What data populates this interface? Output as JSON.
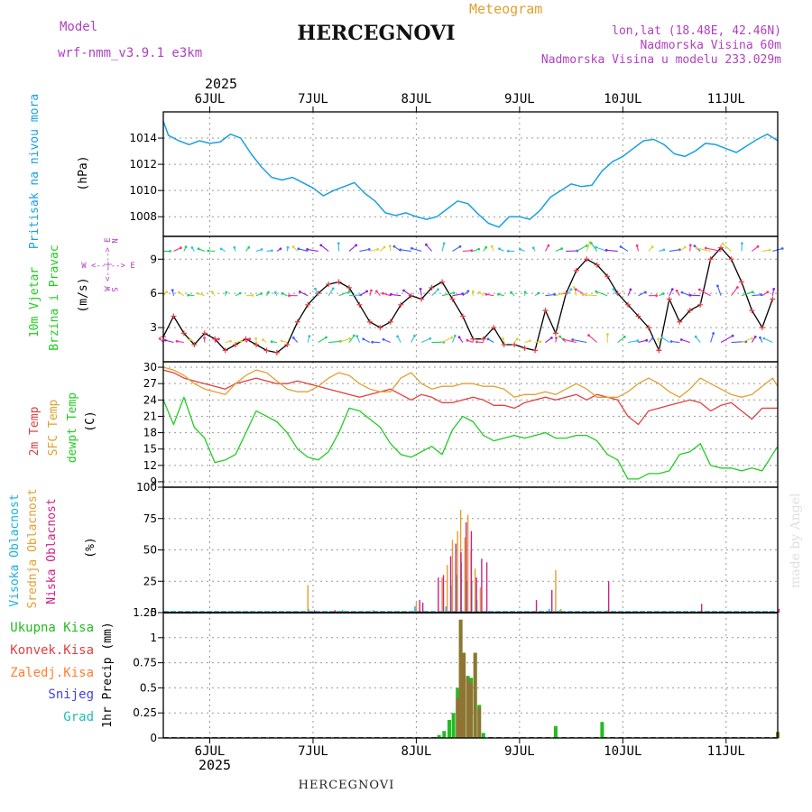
{
  "header": {
    "meteogram_label": "Meteogram",
    "model_label": "Model",
    "model_name": "wrf-nmm_v3.9.1  e3km",
    "station": "HERCEGNOVI",
    "lonlat": "lon,lat (18.48E, 42.46N)",
    "altitude": "Nadmorska Visina 60m",
    "model_altitude": "Nadmorska Visina u modelu 233.029m",
    "year": "2025",
    "footer_station": "HERCEGNOVI",
    "credit": "made by Angel"
  },
  "colors": {
    "pressure": "#1aa0e0",
    "wind_label": "#22cc22",
    "temp2m": "#e04040",
    "sfc": "#e0a030",
    "dewpt": "#22cc22",
    "cloud_high": "#1ab0e0",
    "cloud_mid": "#e0a030",
    "cloud_low": "#cc2288",
    "rain_total": "#22bb22",
    "rain_conv": "#e04040",
    "rain_frozen": "#ff8030",
    "snow": "#4040ee",
    "graupel": "#20c0b0",
    "purple": "#b040c0",
    "black": "#000000"
  },
  "chart_data": [
    {
      "type": "line",
      "panel": "pressure",
      "ylabel_1": "Pritisak na nivou mora",
      "ylabel_2": "(hPa)",
      "ylim": [
        1006.5,
        1016
      ],
      "yticks": [
        "1008",
        "1010",
        "1012",
        "1014"
      ],
      "x_start_day": 5.55,
      "x_end_day": 11.5,
      "day_labels": [
        "6JUL",
        "7JUL",
        "8JUL",
        "9JUL",
        "10JUL",
        "11JUL"
      ],
      "x": [
        5.55,
        5.6,
        5.7,
        5.8,
        5.9,
        6.0,
        6.1,
        6.2,
        6.3,
        6.4,
        6.5,
        6.6,
        6.7,
        6.8,
        6.9,
        7.0,
        7.1,
        7.2,
        7.3,
        7.4,
        7.5,
        7.6,
        7.7,
        7.8,
        7.9,
        8.0,
        8.1,
        8.2,
        8.3,
        8.4,
        8.5,
        8.6,
        8.7,
        8.8,
        8.9,
        9.0,
        9.1,
        9.2,
        9.3,
        9.4,
        9.5,
        9.6,
        9.7,
        9.8,
        9.9,
        10.0,
        10.1,
        10.2,
        10.3,
        10.4,
        10.5,
        10.6,
        10.7,
        10.8,
        10.9,
        11.0,
        11.1,
        11.2,
        11.3,
        11.4,
        11.5
      ],
      "values": [
        1015.3,
        1014.2,
        1013.8,
        1013.5,
        1013.8,
        1013.6,
        1013.7,
        1014.3,
        1014.0,
        1012.8,
        1011.8,
        1011.0,
        1010.8,
        1011.0,
        1010.6,
        1010.2,
        1009.6,
        1010.0,
        1010.3,
        1010.6,
        1009.8,
        1009.2,
        1008.3,
        1008.1,
        1008.3,
        1008.0,
        1007.8,
        1008.0,
        1008.6,
        1009.2,
        1009.0,
        1008.2,
        1007.5,
        1007.2,
        1008.0,
        1008.0,
        1007.8,
        1008.5,
        1009.5,
        1010.0,
        1010.5,
        1010.3,
        1010.4,
        1011.5,
        1012.2,
        1012.6,
        1013.2,
        1013.8,
        1013.9,
        1013.5,
        1012.8,
        1012.6,
        1013.0,
        1013.6,
        1013.5,
        1013.2,
        1012.9,
        1013.4,
        1013.9,
        1014.3,
        1013.8
      ]
    },
    {
      "type": "line",
      "panel": "wind",
      "ylabel_1": "10m Vjetar",
      "ylabel_2": "Brzina i Pravac",
      "ylabel_3": "(m/s)",
      "compass": "W  <--|-->  E",
      "compass_n": "N",
      "compass_s": "S",
      "ylim": [
        0,
        11
      ],
      "yticks": [
        "3",
        "6",
        "9"
      ],
      "x": [
        5.55,
        5.65,
        5.75,
        5.85,
        5.95,
        6.05,
        6.15,
        6.25,
        6.35,
        6.45,
        6.55,
        6.65,
        6.75,
        6.85,
        6.95,
        7.05,
        7.15,
        7.25,
        7.35,
        7.45,
        7.55,
        7.65,
        7.75,
        7.85,
        7.95,
        8.05,
        8.15,
        8.25,
        8.35,
        8.45,
        8.55,
        8.65,
        8.75,
        8.85,
        8.95,
        9.05,
        9.15,
        9.25,
        9.35,
        9.45,
        9.55,
        9.65,
        9.75,
        9.85,
        9.95,
        10.05,
        10.15,
        10.25,
        10.35,
        10.45,
        10.55,
        10.65,
        10.75,
        10.85,
        10.95,
        11.05,
        11.15,
        11.25,
        11.35,
        11.45
      ],
      "speed": [
        2.2,
        4.0,
        2.5,
        1.5,
        2.5,
        2.0,
        1.0,
        1.5,
        2.0,
        1.5,
        1.0,
        0.8,
        1.5,
        3.5,
        5.0,
        6.0,
        6.8,
        7.0,
        6.5,
        5.0,
        3.5,
        3.0,
        3.5,
        5.0,
        5.8,
        5.5,
        6.5,
        7.0,
        5.5,
        4.0,
        2.0,
        2.0,
        3.0,
        1.5,
        1.5,
        1.2,
        1.0,
        4.5,
        2.5,
        6.0,
        8.0,
        9.0,
        8.5,
        7.5,
        6.0,
        5.0,
        4.0,
        3.0,
        1.0,
        5.5,
        3.5,
        4.5,
        5.0,
        9.0,
        10.0,
        9.0,
        7.0,
        4.5,
        3.0,
        5.5
      ],
      "level_rows": [
        9.7,
        5.8,
        1.7
      ]
    },
    {
      "type": "line",
      "panel": "temperature",
      "ylabel_1": "2m Temp",
      "ylabel_2": "SFC Temp",
      "ylabel_3": "dewpt Temp",
      "ylabel_4": "(C)",
      "ylim": [
        8,
        31
      ],
      "yticks": [
        "9",
        "12",
        "15",
        "18",
        "21",
        "24",
        "27",
        "30"
      ],
      "x": [
        5.55,
        5.65,
        5.75,
        5.85,
        5.95,
        6.05,
        6.15,
        6.25,
        6.35,
        6.45,
        6.55,
        6.65,
        6.75,
        6.85,
        6.95,
        7.05,
        7.15,
        7.25,
        7.35,
        7.45,
        7.55,
        7.65,
        7.75,
        7.85,
        7.95,
        8.05,
        8.15,
        8.25,
        8.35,
        8.45,
        8.55,
        8.65,
        8.75,
        8.85,
        8.95,
        9.05,
        9.15,
        9.25,
        9.35,
        9.45,
        9.55,
        9.65,
        9.75,
        9.85,
        9.95,
        10.05,
        10.15,
        10.25,
        10.35,
        10.45,
        10.55,
        10.65,
        10.75,
        10.85,
        10.95,
        11.05,
        11.15,
        11.25,
        11.35,
        11.45,
        11.5
      ],
      "series": [
        {
          "name": "2m Temp",
          "values": [
            29.5,
            29.0,
            28.0,
            27.5,
            27.0,
            26.5,
            26.0,
            27.0,
            27.5,
            28.0,
            27.5,
            27.0,
            27.0,
            27.5,
            27.0,
            26.5,
            26.0,
            25.5,
            25.0,
            24.5,
            25.0,
            25.5,
            26.0,
            25.0,
            24.0,
            25.0,
            24.5,
            23.5,
            23.5,
            24.0,
            24.5,
            24.0,
            23.0,
            23.0,
            22.5,
            23.5,
            24.0,
            24.5,
            24.0,
            24.5,
            25.0,
            24.0,
            25.0,
            24.5,
            24.0,
            21.0,
            19.5,
            22.0,
            22.5,
            23.0,
            23.5,
            24.0,
            23.5,
            22.0,
            23.0,
            23.5,
            22.0,
            20.5,
            22.5,
            22.5,
            22.5
          ]
        },
        {
          "name": "SFC Temp",
          "values": [
            30.0,
            29.5,
            28.5,
            27.0,
            26.0,
            25.5,
            25.0,
            27.0,
            28.5,
            29.5,
            29.0,
            27.5,
            26.0,
            25.5,
            25.5,
            26.5,
            28.0,
            29.0,
            28.5,
            27.0,
            26.0,
            25.5,
            25.5,
            28.0,
            29.0,
            27.0,
            26.0,
            26.5,
            26.5,
            27.0,
            27.0,
            26.5,
            26.5,
            26.0,
            24.5,
            25.0,
            25.0,
            25.5,
            25.0,
            26.0,
            27.0,
            26.0,
            24.5,
            24.5,
            24.5,
            25.5,
            27.0,
            28.0,
            27.0,
            25.5,
            24.5,
            26.0,
            28.0,
            27.0,
            26.0,
            25.0,
            24.5,
            25.0,
            26.5,
            28.0,
            26.5
          ]
        },
        {
          "name": "dewpt Temp",
          "values": [
            24.0,
            19.5,
            24.5,
            19.0,
            17.0,
            12.5,
            13.0,
            14.0,
            18.0,
            22.0,
            21.0,
            20.0,
            18.0,
            15.0,
            13.5,
            13.0,
            14.5,
            18.0,
            22.5,
            22.0,
            20.5,
            19.0,
            16.0,
            14.0,
            13.5,
            14.5,
            15.5,
            14.0,
            18.5,
            21.0,
            20.0,
            17.5,
            16.5,
            17.0,
            17.5,
            17.0,
            17.5,
            18.0,
            17.0,
            17.0,
            17.5,
            17.5,
            16.5,
            14.0,
            13.0,
            9.5,
            9.5,
            10.5,
            10.5,
            11.0,
            14.0,
            14.5,
            16.0,
            12.0,
            11.5,
            11.5,
            11.0,
            11.5,
            11.0,
            14.0,
            15.5
          ]
        }
      ]
    },
    {
      "type": "bar",
      "panel": "clouds",
      "ylabel_1": "Visoka Oblacnost",
      "ylabel_2": "Srednja Oblacnost",
      "ylabel_3": "Niska Oblacnost",
      "ylabel_4": "(%)",
      "ylim": [
        0,
        100
      ],
      "yticks": [
        "0",
        "25",
        "50",
        "75",
        "100"
      ],
      "series": [
        {
          "name": "Visoka Oblacnost",
          "x": [
            6.97,
            7.3,
            7.6,
            8.0,
            8.3,
            8.35,
            8.4,
            8.45,
            8.5,
            8.55,
            8.6,
            9.3,
            9.4
          ],
          "values": [
            3,
            2,
            2,
            5,
            5,
            22,
            30,
            40,
            25,
            25,
            10,
            3,
            2
          ]
        },
        {
          "name": "Srednja Oblacnost",
          "x": [
            6.95,
            8.0,
            8.25,
            8.3,
            8.35,
            8.4,
            8.43,
            8.47,
            8.5,
            8.53,
            8.57,
            8.62,
            9.35,
            9.4,
            9.85
          ],
          "values": [
            22,
            8,
            28,
            38,
            58,
            65,
            82,
            60,
            78,
            50,
            35,
            20,
            34,
            3,
            2
          ]
        },
        {
          "name": "Niska Oblacnost",
          "x": [
            7.0,
            7.2,
            8.02,
            8.05,
            8.2,
            8.25,
            8.32,
            8.37,
            8.42,
            8.47,
            8.52,
            8.57,
            8.62,
            8.67,
            9.15,
            9.3,
            9.85,
            10.75,
            11.5
          ],
          "values": [
            2,
            2,
            10,
            8,
            28,
            30,
            45,
            55,
            48,
            72,
            65,
            28,
            43,
            40,
            10,
            18,
            25,
            7,
            3
          ]
        }
      ]
    },
    {
      "type": "bar",
      "panel": "precip",
      "ylabel_1": "1hr Precip (mm)",
      "legend": [
        "Ukupna Kisa",
        "Konvek.Kisa",
        "Zaledj.Kisa",
        "Snijeg",
        "Grad"
      ],
      "ylim": [
        0,
        1.25
      ],
      "yticks": [
        "0",
        "0.25",
        "0.5",
        "0.75",
        "1",
        "1.25"
      ],
      "series": [
        {
          "name": "Ukupna Kisa",
          "x": [
            8.22,
            8.27,
            8.32,
            8.36,
            8.4,
            8.43,
            8.46,
            8.5,
            8.53,
            8.57,
            8.61,
            8.65,
            9.35,
            9.8,
            11.5
          ],
          "values": [
            0.03,
            0.07,
            0.18,
            0.25,
            0.5,
            1.18,
            0.85,
            0.62,
            0.6,
            0.85,
            0.33,
            0.05,
            0.12,
            0.16,
            0.06
          ]
        },
        {
          "name": "Konvek.Kisa",
          "x": [
            8.4,
            8.43,
            8.46,
            8.5,
            8.53,
            8.57,
            8.61,
            11.5
          ],
          "values": [
            0.4,
            1.18,
            0.85,
            0.6,
            0.55,
            0.85,
            0.3,
            0.06
          ]
        }
      ]
    }
  ]
}
